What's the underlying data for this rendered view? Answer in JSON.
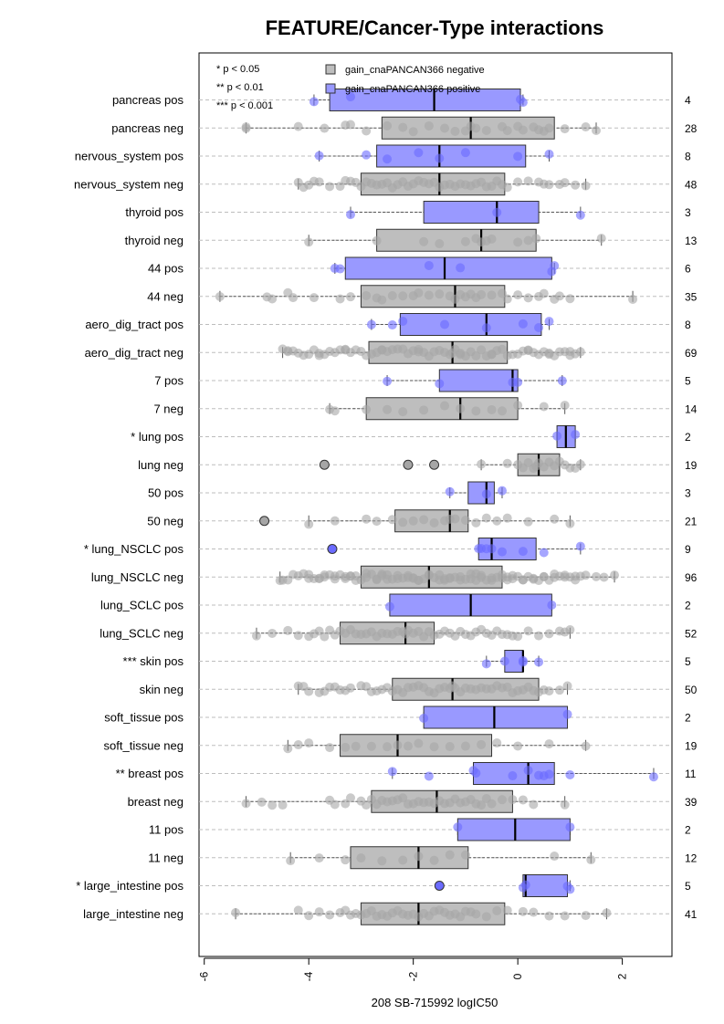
{
  "chart_data": {
    "type": "boxplot",
    "orientation": "horizontal",
    "title": "FEATURE/Cancer-Type interactions",
    "xlabel": "208 SB-715992 logIC50",
    "xlim": [
      -6.1,
      2.95
    ],
    "xticks": [
      -6,
      -4,
      -2,
      0,
      2
    ],
    "legend": {
      "placement": "top-left",
      "significance": [
        "* p < 0.05",
        "** p < 0.01",
        "*** p < 0.001"
      ],
      "series": [
        {
          "name": "gain_cnaPANCAN366 negative",
          "color": "#bebebe"
        },
        {
          "name": "gain_cnaPANCAN366 positive",
          "color": "#9999ff"
        }
      ]
    },
    "colors": {
      "neg_box": "#bebebe",
      "pos_box": "#9999ff",
      "neg_point": "#a6a6a6",
      "pos_point": "#6b6bff",
      "grid": "#bdbdbd"
    },
    "rows": [
      {
        "label": "pancreas pos",
        "group": "pos",
        "n": "4",
        "whisker": [
          -3.9,
          0.1
        ],
        "box": [
          -3.6,
          0.05
        ],
        "median": -1.6,
        "points": [
          -3.9,
          -3.2,
          0.05,
          0.1
        ]
      },
      {
        "label": "pancreas neg",
        "group": "neg",
        "n": "28",
        "whisker": [
          -5.2,
          1.5
        ],
        "box": [
          -2.6,
          0.7
        ],
        "median": -0.9,
        "points": [
          -5.2,
          -5.2,
          -4.2,
          -3.7,
          -3.3,
          -3.2,
          -2.9,
          -2.5,
          -2.2,
          -2.0,
          -1.7,
          -1.4,
          -1.2,
          -1.0,
          -0.9,
          -0.8,
          -0.6,
          -0.3,
          -0.2,
          0.0,
          0.1,
          0.3,
          0.4,
          0.5,
          0.6,
          0.9,
          1.3,
          1.5
        ]
      },
      {
        "label": "nervous_system pos",
        "group": "pos",
        "n": "8",
        "whisker": [
          -3.8,
          0.6
        ],
        "box": [
          -2.7,
          0.15
        ],
        "median": -1.5,
        "points": [
          -3.8,
          -2.9,
          -2.5,
          -1.9,
          -1.5,
          -1.0,
          0.0,
          0.6
        ]
      },
      {
        "label": "nervous_system neg",
        "group": "neg",
        "n": "48",
        "whisker": [
          -4.2,
          1.3
        ],
        "box": [
          -3.0,
          -0.25
        ],
        "median": -1.5,
        "points": [
          -4.2,
          -4.1,
          -4.0,
          -3.9,
          -3.8,
          -3.6,
          -3.4,
          -3.3,
          -3.2,
          -3.1,
          -3.0,
          -2.9,
          -2.8,
          -2.7,
          -2.6,
          -2.5,
          -2.4,
          -2.3,
          -2.2,
          -2.1,
          -2.0,
          -1.9,
          -1.8,
          -1.7,
          -1.6,
          -1.5,
          -1.4,
          -1.3,
          -1.2,
          -1.1,
          -1.0,
          -0.9,
          -0.8,
          -0.7,
          -0.6,
          -0.5,
          -0.4,
          -0.3,
          -0.2,
          0.0,
          0.2,
          0.4,
          0.5,
          0.6,
          0.8,
          0.9,
          1.1,
          1.3
        ]
      },
      {
        "label": "thyroid pos",
        "group": "pos",
        "n": "3",
        "whisker": [
          -3.2,
          1.2
        ],
        "box": [
          -1.8,
          0.4
        ],
        "median": -0.4,
        "points": [
          -3.2,
          -0.4,
          1.2
        ]
      },
      {
        "label": "thyroid neg",
        "group": "neg",
        "n": "13",
        "whisker": [
          -4.0,
          1.6
        ],
        "box": [
          -2.7,
          0.35
        ],
        "median": -0.7,
        "points": [
          -4.0,
          -2.7,
          -1.8,
          -1.5,
          -1.0,
          -0.8,
          -0.7,
          -0.6,
          -0.5,
          0.0,
          0.2,
          0.35,
          1.6
        ]
      },
      {
        "label": "44 pos",
        "group": "pos",
        "n": "6",
        "whisker": [
          -3.5,
          0.7
        ],
        "box": [
          -3.3,
          0.65
        ],
        "median": -1.4,
        "points": [
          -3.5,
          -3.4,
          -1.7,
          -1.1,
          0.65,
          0.7
        ]
      },
      {
        "label": "44 neg",
        "group": "neg",
        "n": "35",
        "whisker": [
          -5.7,
          2.2
        ],
        "box": [
          -3.0,
          -0.25
        ],
        "median": -1.2,
        "points": [
          -5.7,
          -4.8,
          -4.7,
          -4.4,
          -4.3,
          -3.9,
          -3.4,
          -3.2,
          -2.9,
          -2.7,
          -2.6,
          -2.4,
          -2.2,
          -2.0,
          -1.9,
          -1.7,
          -1.5,
          -1.3,
          -1.2,
          -1.1,
          -1.0,
          -0.9,
          -0.8,
          -0.7,
          -0.5,
          -0.3,
          -0.2,
          0.0,
          0.2,
          0.4,
          0.5,
          0.7,
          0.8,
          1.0,
          2.2
        ]
      },
      {
        "label": "aero_dig_tract pos",
        "group": "pos",
        "n": "8",
        "whisker": [
          -2.8,
          0.6
        ],
        "box": [
          -2.25,
          0.45
        ],
        "median": -0.6,
        "points": [
          -2.8,
          -2.4,
          -2.2,
          -1.4,
          -0.6,
          0.1,
          0.4,
          0.6
        ]
      },
      {
        "label": "aero_dig_tract neg",
        "group": "neg",
        "n": "69",
        "whisker": [
          -4.5,
          1.2
        ],
        "box": [
          -2.85,
          -0.2
        ],
        "median": -1.25,
        "points": [
          -4.5,
          -4.4,
          -4.3,
          -4.2,
          -4.1,
          -4.0,
          -3.9,
          -3.8,
          -3.7,
          -3.6,
          -3.5,
          -3.4,
          -3.3,
          -3.2,
          -3.1,
          -3.0,
          -2.9,
          -2.8,
          -2.7,
          -2.6,
          -2.5,
          -2.4,
          -2.3,
          -2.2,
          -2.1,
          -2.0,
          -1.9,
          -1.8,
          -1.7,
          -1.6,
          -1.5,
          -1.4,
          -1.3,
          -1.25,
          -1.2,
          -1.1,
          -1.0,
          -0.9,
          -0.8,
          -0.7,
          -0.6,
          -0.5,
          -0.4,
          -0.3,
          -0.2,
          -0.1,
          0.0,
          0.1,
          0.2,
          0.3,
          0.4,
          0.5,
          0.6,
          0.7,
          0.8,
          0.9,
          1.0,
          1.1,
          1.2,
          -4.4,
          -3.8,
          -3.3,
          -2.6,
          -1.9,
          -1.1,
          -0.5,
          0.2,
          0.6,
          1.0
        ]
      },
      {
        "label": "7 pos",
        "group": "pos",
        "n": "5",
        "whisker": [
          -2.5,
          0.85
        ],
        "box": [
          -1.5,
          0.0
        ],
        "median": -0.1,
        "points": [
          -2.5,
          -1.5,
          -0.1,
          0.0,
          0.85
        ]
      },
      {
        "label": "7 neg",
        "group": "neg",
        "n": "14",
        "whisker": [
          -3.6,
          0.9
        ],
        "box": [
          -2.9,
          0.0
        ],
        "median": -1.1,
        "points": [
          -3.6,
          -3.5,
          -2.9,
          -2.5,
          -2.2,
          -1.8,
          -1.4,
          -1.1,
          -0.8,
          -0.5,
          -0.3,
          0.0,
          0.5,
          0.9
        ]
      },
      {
        "label": "* lung pos",
        "group": "pos",
        "n": "2",
        "whisker": [
          0.75,
          1.1
        ],
        "box": [
          0.75,
          1.1
        ],
        "median": 0.92,
        "points": [
          0.75,
          1.1
        ]
      },
      {
        "label": "lung neg",
        "group": "neg",
        "n": "19",
        "whisker": [
          -0.7,
          1.2
        ],
        "box": [
          0.0,
          0.8
        ],
        "median": 0.4,
        "points": [
          -3.7,
          -2.1,
          -1.6,
          -0.7,
          -0.2,
          0.0,
          0.1,
          0.2,
          0.3,
          0.4,
          0.5,
          0.6,
          0.7,
          0.8,
          0.9,
          1.0,
          1.1,
          1.2,
          0.35
        ]
      },
      {
        "label": "50 pos",
        "group": "pos",
        "n": "3",
        "whisker": [
          -1.3,
          -0.3
        ],
        "box": [
          -0.95,
          -0.45
        ],
        "median": -0.6,
        "points": [
          -1.3,
          -0.6,
          -0.3
        ]
      },
      {
        "label": "50 neg",
        "group": "neg",
        "n": "21",
        "whisker": [
          -4.0,
          1.0
        ],
        "box": [
          -2.35,
          -0.95
        ],
        "median": -1.3,
        "points": [
          -4.85,
          -4.0,
          -3.5,
          -2.9,
          -2.7,
          -2.4,
          -2.2,
          -2.0,
          -1.8,
          -1.6,
          -1.4,
          -1.3,
          -1.2,
          -1.0,
          -0.8,
          -0.6,
          -0.4,
          -0.2,
          0.2,
          0.7,
          1.0
        ]
      },
      {
        "label": "* lung_NSCLC pos",
        "group": "pos",
        "n": "9",
        "whisker": [
          -0.75,
          1.2
        ],
        "box": [
          -0.75,
          0.35
        ],
        "median": -0.5,
        "points": [
          -3.55,
          -0.75,
          -0.7,
          -0.6,
          -0.5,
          -0.3,
          0.1,
          0.5,
          1.2
        ]
      },
      {
        "label": "lung_NSCLC neg",
        "group": "neg",
        "n": "96",
        "whisker": [
          -4.55,
          1.85
        ],
        "box": [
          -3.0,
          -0.3
        ],
        "median": -1.7,
        "points": [
          -4.55,
          -4.5,
          -4.3,
          -4.2,
          -4.1,
          -4.0,
          -3.9,
          -3.8,
          -3.7,
          -3.6,
          -3.5,
          -3.4,
          -3.3,
          -3.2,
          -3.1,
          -3.0,
          -2.9,
          -2.8,
          -2.7,
          -2.6,
          -2.5,
          -2.4,
          -2.3,
          -2.2,
          -2.1,
          -2.0,
          -1.9,
          -1.8,
          -1.7,
          -1.6,
          -1.5,
          -1.4,
          -1.3,
          -1.2,
          -1.1,
          -1.0,
          -0.9,
          -0.8,
          -0.7,
          -0.6,
          -0.5,
          -0.4,
          -0.3,
          -0.2,
          -0.1,
          0.0,
          0.1,
          0.2,
          0.3,
          0.4,
          0.5,
          0.6,
          0.7,
          0.8,
          0.9,
          1.0,
          1.1,
          1.2,
          1.3,
          1.5,
          1.65,
          1.85,
          -4.4,
          -4.0,
          -3.7,
          -3.5,
          -3.3,
          -3.1,
          -2.9,
          -2.7,
          -2.5,
          -2.3,
          -2.1,
          -1.9,
          -1.7,
          -1.5,
          -1.3,
          -1.1,
          -0.9,
          -0.7,
          -0.5,
          -0.3,
          -0.1,
          0.1,
          0.3,
          0.5,
          0.7,
          0.9,
          1.1,
          -3.8,
          -3.2,
          -2.6,
          -2.0,
          -1.4,
          -0.8,
          -0.2
        ]
      },
      {
        "label": "lung_SCLC pos",
        "group": "pos",
        "n": "2",
        "whisker": [
          -2.45,
          0.65
        ],
        "box": [
          -2.45,
          0.65
        ],
        "median": -0.9,
        "points": [
          -2.45,
          0.65
        ]
      },
      {
        "label": "lung_SCLC neg",
        "group": "neg",
        "n": "52",
        "whisker": [
          -5.0,
          1.0
        ],
        "box": [
          -3.4,
          -1.6
        ],
        "median": -2.15,
        "points": [
          -5.0,
          -4.7,
          -4.4,
          -4.2,
          -4.0,
          -3.9,
          -3.8,
          -3.7,
          -3.6,
          -3.5,
          -3.4,
          -3.3,
          -3.2,
          -3.1,
          -3.0,
          -2.9,
          -2.8,
          -2.7,
          -2.6,
          -2.5,
          -2.4,
          -2.3,
          -2.2,
          -2.15,
          -2.1,
          -2.0,
          -1.9,
          -1.8,
          -1.7,
          -1.6,
          -1.5,
          -1.4,
          -1.3,
          -1.2,
          -1.1,
          -1.0,
          -0.9,
          -0.8,
          -0.7,
          -0.6,
          -0.5,
          -0.4,
          -0.3,
          -0.2,
          -0.1,
          0.0,
          0.2,
          0.4,
          0.6,
          0.8,
          0.9,
          1.0
        ]
      },
      {
        "label": "*** skin pos",
        "group": "pos",
        "n": "5",
        "whisker": [
          -0.6,
          0.4
        ],
        "box": [
          -0.25,
          0.1
        ],
        "median": 0.1,
        "points": [
          -0.6,
          -0.25,
          0.1,
          0.1,
          0.4
        ]
      },
      {
        "label": "skin neg",
        "group": "neg",
        "n": "50",
        "whisker": [
          -4.2,
          0.95
        ],
        "box": [
          -2.4,
          0.4
        ],
        "median": -1.25,
        "points": [
          -4.2,
          -4.1,
          -4.0,
          -3.8,
          -3.7,
          -3.6,
          -3.5,
          -3.4,
          -3.3,
          -3.2,
          -3.0,
          -2.9,
          -2.8,
          -2.7,
          -2.6,
          -2.5,
          -2.4,
          -2.3,
          -2.2,
          -2.1,
          -2.0,
          -1.9,
          -1.8,
          -1.7,
          -1.6,
          -1.5,
          -1.4,
          -1.3,
          -1.25,
          -1.2,
          -1.1,
          -1.0,
          -0.9,
          -0.8,
          -0.7,
          -0.6,
          -0.5,
          -0.4,
          -0.3,
          -0.2,
          -0.1,
          0.0,
          0.1,
          0.2,
          0.3,
          0.4,
          0.5,
          0.6,
          0.8,
          0.95
        ]
      },
      {
        "label": "soft_tissue pos",
        "group": "pos",
        "n": "2",
        "whisker": [
          -1.8,
          0.95
        ],
        "box": [
          -1.8,
          0.95
        ],
        "median": -0.45,
        "points": [
          -1.8,
          0.95
        ]
      },
      {
        "label": "soft_tissue neg",
        "group": "neg",
        "n": "19",
        "whisker": [
          -4.4,
          1.3
        ],
        "box": [
          -3.4,
          -0.5
        ],
        "median": -2.3,
        "points": [
          -4.4,
          -4.2,
          -4.0,
          -3.6,
          -3.3,
          -3.1,
          -2.8,
          -2.5,
          -2.3,
          -2.1,
          -1.9,
          -1.6,
          -1.3,
          -1.0,
          -0.7,
          -0.4,
          0.0,
          0.6,
          1.3
        ]
      },
      {
        "label": "** breast pos",
        "group": "pos",
        "n": "11",
        "whisker": [
          -2.4,
          2.6
        ],
        "box": [
          -0.85,
          0.7
        ],
        "median": 0.2,
        "points": [
          -2.4,
          -1.7,
          -0.85,
          -0.8,
          -0.1,
          0.2,
          0.4,
          0.5,
          0.6,
          1.0,
          2.6
        ]
      },
      {
        "label": "breast neg",
        "group": "neg",
        "n": "39",
        "whisker": [
          -5.2,
          0.9
        ],
        "box": [
          -2.8,
          -0.1
        ],
        "median": -1.55,
        "points": [
          -5.2,
          -4.9,
          -4.7,
          -4.5,
          -3.6,
          -3.5,
          -3.3,
          -3.2,
          -3.0,
          -2.9,
          -2.8,
          -2.7,
          -2.6,
          -2.5,
          -2.4,
          -2.3,
          -2.2,
          -2.1,
          -2.0,
          -1.9,
          -1.8,
          -1.7,
          -1.6,
          -1.5,
          -1.4,
          -1.3,
          -1.2,
          -1.1,
          -1.0,
          -0.9,
          -0.8,
          -0.7,
          -0.6,
          -0.5,
          -0.3,
          -0.1,
          0.1,
          0.3,
          0.9
        ]
      },
      {
        "label": "11 pos",
        "group": "pos",
        "n": "2",
        "whisker": [
          -1.15,
          1.0
        ],
        "box": [
          -1.15,
          1.0
        ],
        "median": -0.05,
        "points": [
          -1.15,
          1.0
        ]
      },
      {
        "label": "11 neg",
        "group": "neg",
        "n": "12",
        "whisker": [
          -4.35,
          1.4
        ],
        "box": [
          -3.2,
          -0.95
        ],
        "median": -1.9,
        "points": [
          -4.35,
          -3.8,
          -3.3,
          -3.0,
          -2.6,
          -2.2,
          -1.9,
          -1.6,
          -1.3,
          -1.0,
          0.7,
          1.4
        ]
      },
      {
        "label": "* large_intestine pos",
        "group": "pos",
        "n": "5",
        "whisker": [
          0.1,
          1.0
        ],
        "box": [
          0.1,
          0.95
        ],
        "median": 0.15,
        "points": [
          -1.5,
          0.1,
          0.15,
          0.95,
          1.0
        ]
      },
      {
        "label": "large_intestine neg",
        "group": "neg",
        "n": "41",
        "whisker": [
          -5.4,
          1.7
        ],
        "box": [
          -3.0,
          -0.25
        ],
        "median": -1.9,
        "points": [
          -5.4,
          -4.2,
          -4.0,
          -3.8,
          -3.6,
          -3.4,
          -3.3,
          -3.2,
          -3.1,
          -3.0,
          -2.9,
          -2.8,
          -2.7,
          -2.6,
          -2.5,
          -2.4,
          -2.3,
          -2.2,
          -2.1,
          -2.0,
          -1.9,
          -1.8,
          -1.7,
          -1.6,
          -1.5,
          -1.4,
          -1.3,
          -1.2,
          -1.1,
          -1.0,
          -0.9,
          -0.8,
          -0.6,
          -0.4,
          -0.2,
          0.1,
          0.3,
          0.6,
          0.9,
          1.3,
          1.7
        ]
      }
    ]
  }
}
